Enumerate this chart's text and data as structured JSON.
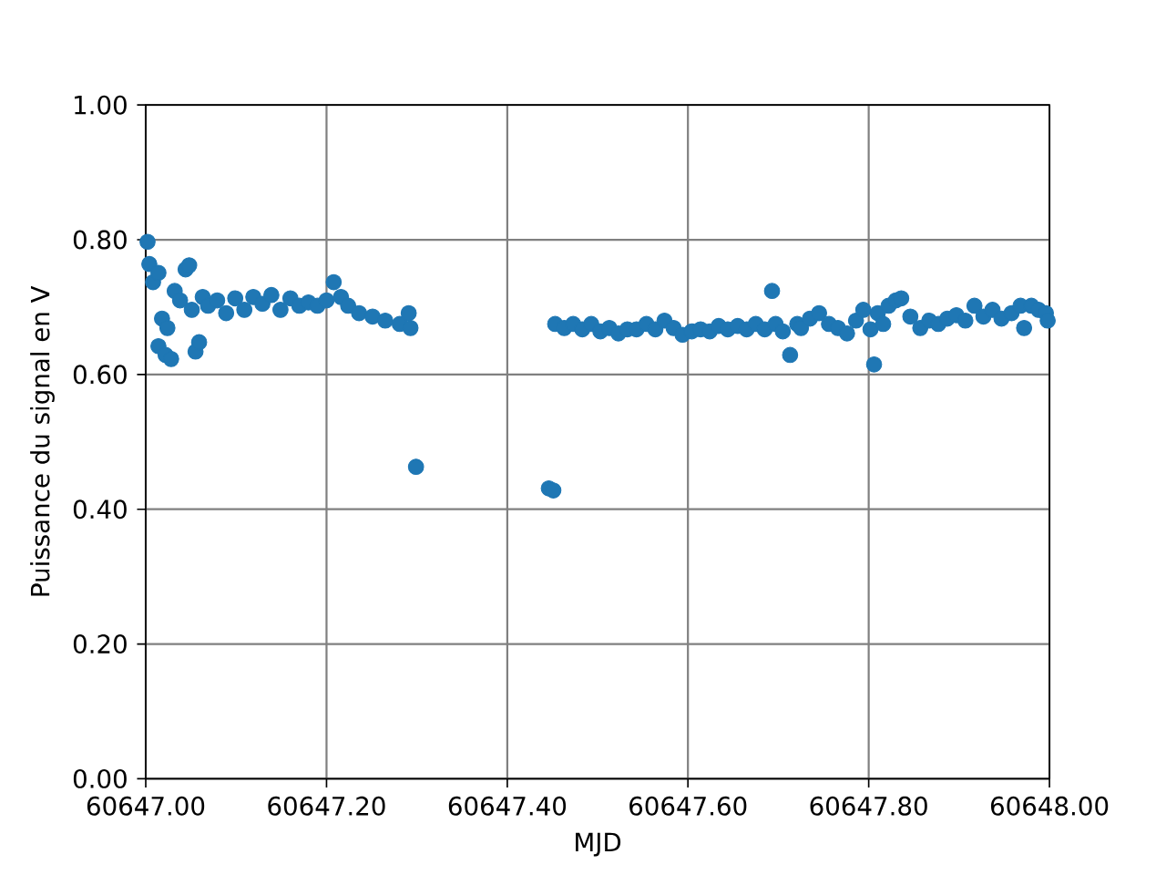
{
  "chart_data": {
    "type": "scatter",
    "xlabel": "MJD",
    "ylabel": "Puissance du signal en V",
    "x": [
      60647.002,
      60647.004,
      60647.008,
      60647.014,
      60647.018,
      60647.014,
      60647.022,
      60647.028,
      60647.024,
      60647.032,
      60647.038,
      60647.044,
      60647.048,
      60647.051,
      60647.055,
      60647.059,
      60647.063,
      60647.069,
      60647.079,
      60647.089,
      60647.099,
      60647.109,
      60647.119,
      60647.129,
      60647.139,
      60647.149,
      60647.16,
      60647.17,
      60647.18,
      60647.19,
      60647.2,
      60647.208,
      60647.216,
      60647.224,
      60647.236,
      60647.251,
      60647.265,
      60647.281,
      60647.291,
      60647.293,
      60647.299,
      60647.446,
      60647.451,
      60647.453,
      60647.463,
      60647.473,
      60647.483,
      60647.493,
      60647.503,
      60647.513,
      60647.523,
      60647.533,
      60647.543,
      60647.554,
      60647.564,
      60647.574,
      60647.584,
      60647.594,
      60647.604,
      60647.614,
      60647.624,
      60647.634,
      60647.644,
      60647.655,
      60647.665,
      60647.675,
      60647.685,
      60647.693,
      60647.697,
      60647.705,
      60647.713,
      60647.721,
      60647.725,
      60647.735,
      60647.745,
      60647.756,
      60647.766,
      60647.776,
      60647.786,
      60647.794,
      60647.802,
      60647.806,
      60647.81,
      60647.816,
      60647.822,
      60647.83,
      60647.836,
      60647.846,
      60647.857,
      60647.867,
      60647.877,
      60647.887,
      60647.897,
      60647.907,
      60647.917,
      60647.927,
      60647.937,
      60647.947,
      60647.958,
      60647.968,
      60647.972,
      60647.98,
      60647.988,
      60647.996,
      60647.998
    ],
    "values": [
      0.797,
      0.764,
      0.737,
      0.751,
      0.683,
      0.642,
      0.629,
      0.623,
      0.669,
      0.724,
      0.71,
      0.756,
      0.762,
      0.696,
      0.634,
      0.648,
      0.715,
      0.702,
      0.71,
      0.691,
      0.713,
      0.696,
      0.715,
      0.705,
      0.718,
      0.696,
      0.713,
      0.702,
      0.707,
      0.702,
      0.71,
      0.737,
      0.715,
      0.702,
      0.691,
      0.686,
      0.68,
      0.675,
      0.691,
      0.669,
      0.463,
      0.431,
      0.428,
      0.675,
      0.669,
      0.675,
      0.667,
      0.675,
      0.664,
      0.669,
      0.661,
      0.667,
      0.667,
      0.675,
      0.667,
      0.68,
      0.669,
      0.659,
      0.664,
      0.667,
      0.664,
      0.672,
      0.667,
      0.672,
      0.667,
      0.675,
      0.667,
      0.724,
      0.675,
      0.664,
      0.629,
      0.675,
      0.669,
      0.683,
      0.691,
      0.675,
      0.669,
      0.661,
      0.68,
      0.696,
      0.667,
      0.615,
      0.691,
      0.675,
      0.702,
      0.71,
      0.713,
      0.686,
      0.669,
      0.68,
      0.675,
      0.683,
      0.688,
      0.68,
      0.702,
      0.686,
      0.696,
      0.683,
      0.691,
      0.702,
      0.669,
      0.702,
      0.696,
      0.691,
      0.68
    ],
    "color": "#1f77b4",
    "grid": true,
    "xlim": [
      60647.0,
      60648.0
    ],
    "ylim": [
      0.0,
      1.0
    ],
    "xticks": [
      {
        "value": 60647.0,
        "label": "60647.00"
      },
      {
        "value": 60647.2,
        "label": "60647.20"
      },
      {
        "value": 60647.4,
        "label": "60647.40"
      },
      {
        "value": 60647.6,
        "label": "60647.60"
      },
      {
        "value": 60647.8,
        "label": "60647.80"
      },
      {
        "value": 60648.0,
        "label": "60648.00"
      }
    ],
    "yticks": [
      {
        "value": 0.0,
        "label": "0.00"
      },
      {
        "value": 0.2,
        "label": "0.20"
      },
      {
        "value": 0.4,
        "label": "0.40"
      },
      {
        "value": 0.6,
        "label": "0.60"
      },
      {
        "value": 0.8,
        "label": "0.80"
      },
      {
        "value": 1.0,
        "label": "1.00"
      }
    ]
  }
}
